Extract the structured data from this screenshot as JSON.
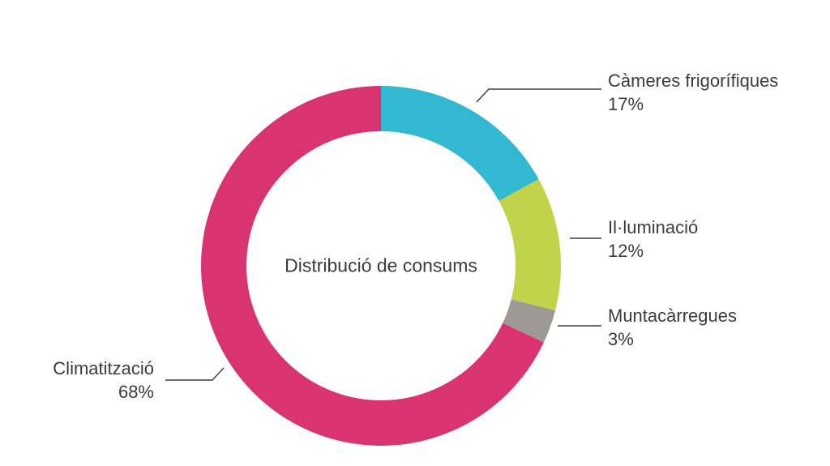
{
  "chart_data": {
    "type": "pie",
    "title": "Distribució de consums",
    "slices": [
      {
        "label": "Càmeres frigorífiques",
        "value": 17,
        "display": "17%",
        "color": "#32b8d0"
      },
      {
        "label": "Il·luminació",
        "value": 12,
        "display": "12%",
        "color": "#c0d34a"
      },
      {
        "label": "Muntacàrregues",
        "value": 3,
        "display": "3%",
        "color": "#9e9994"
      },
      {
        "label": "Climatització",
        "value": 68,
        "display": "68%",
        "color": "#d93371"
      }
    ]
  }
}
